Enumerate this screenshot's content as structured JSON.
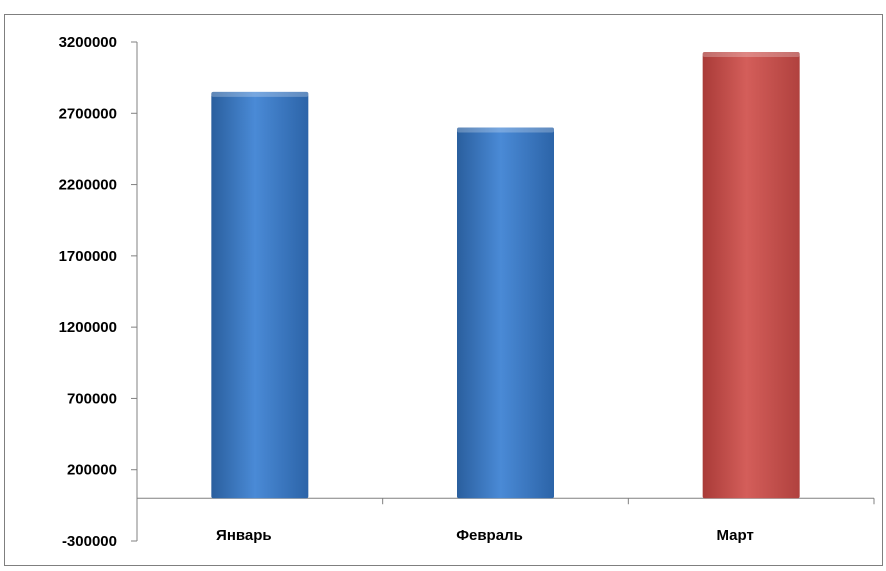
{
  "chart_data": {
    "type": "bar",
    "categories": [
      "Январь",
      "Февраль",
      "Март"
    ],
    "values": [
      2850000,
      2600000,
      3130000
    ],
    "bar_colors": [
      "#3a78c4",
      "#3a78c4",
      "#c9504c"
    ],
    "ylim": [
      -300000,
      3200000
    ],
    "yticks": [
      "3200000",
      "2700000",
      "2200000",
      "1700000",
      "1200000",
      "700000",
      "200000",
      "-300000"
    ],
    "grid": false,
    "legend": "none"
  }
}
